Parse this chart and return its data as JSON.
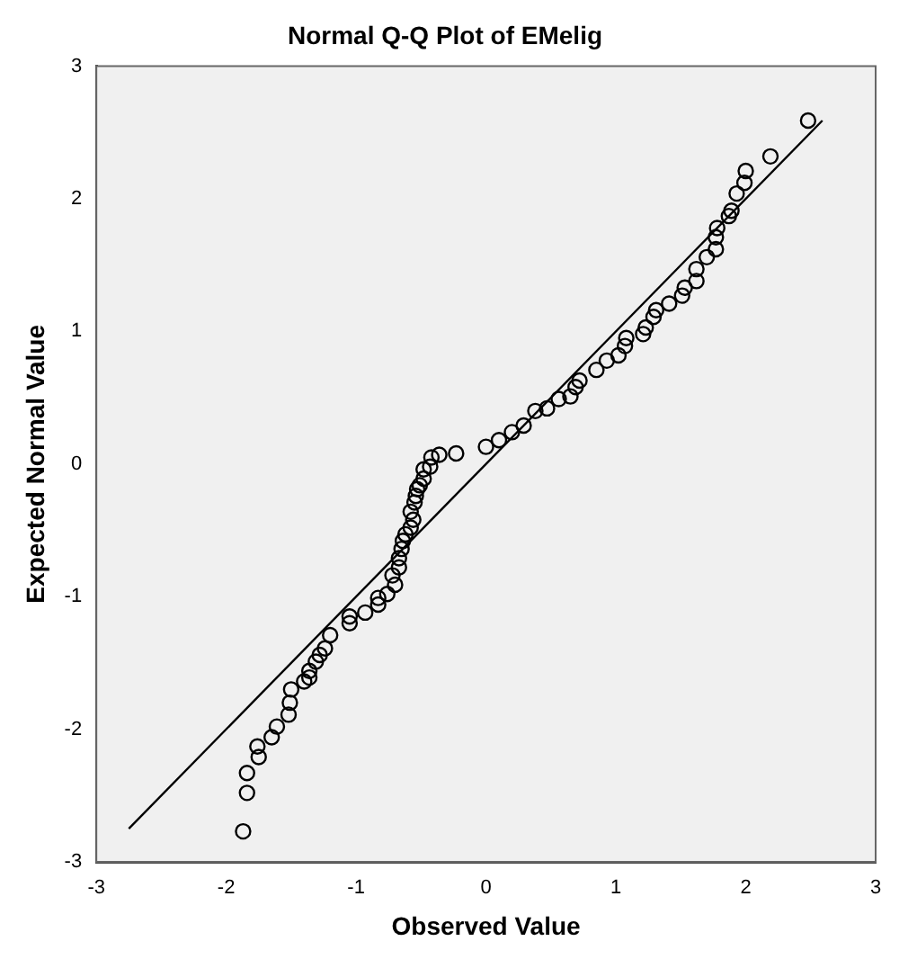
{
  "chart_data": {
    "type": "scatter",
    "title": "Normal Q-Q Plot of EMelig",
    "xlabel": "Observed Value",
    "ylabel": "Expected Normal Value",
    "xlim": [
      -3,
      3
    ],
    "xticks": [
      -3,
      -2,
      -1,
      0,
      1,
      2,
      3
    ],
    "ylim": [
      -3,
      3
    ],
    "yticks": [
      -3,
      -2,
      -1,
      0,
      1,
      2,
      3
    ],
    "marker": "circle",
    "series": [
      {
        "color": "#000000",
        "x": [
          -1.87,
          -1.84,
          -1.84,
          -1.75,
          -1.76,
          -1.65,
          -1.61,
          -1.52,
          -1.51,
          -1.5,
          -1.4,
          -1.36,
          -1.36,
          -1.31,
          -1.28,
          -1.24,
          -1.2,
          -1.05,
          -1.05,
          -0.93,
          -0.83,
          -0.83,
          -0.76,
          -0.7,
          -0.72,
          -0.67,
          -0.67,
          -0.65,
          -0.64,
          -0.62,
          -0.58,
          -0.56,
          -0.58,
          -0.55,
          -0.54,
          -0.53,
          -0.51,
          -0.48,
          -0.48,
          -0.42,
          -0.43,
          -0.36,
          -0.23,
          0.0,
          0.1,
          0.2,
          0.29,
          0.38,
          0.47,
          0.56,
          0.65,
          0.69,
          0.72,
          0.85,
          0.93,
          1.02,
          1.07,
          1.08,
          1.21,
          1.23,
          1.29,
          1.31,
          1.41,
          1.51,
          1.53,
          1.62,
          1.62,
          1.7,
          1.77,
          1.77,
          1.78,
          1.87,
          1.89,
          1.93,
          1.99,
          2.0,
          2.19,
          2.48
        ],
        "values": [
          -2.77,
          -2.48,
          -2.33,
          -2.21,
          -2.13,
          -2.06,
          -1.98,
          -1.89,
          -1.8,
          -1.7,
          -1.64,
          -1.61,
          -1.56,
          -1.49,
          -1.44,
          -1.39,
          -1.29,
          -1.2,
          -1.15,
          -1.12,
          -1.06,
          -1.01,
          -0.98,
          -0.91,
          -0.84,
          -0.78,
          -0.71,
          -0.64,
          -0.58,
          -0.53,
          -0.48,
          -0.42,
          -0.36,
          -0.29,
          -0.24,
          -0.19,
          -0.16,
          -0.11,
          -0.04,
          0.05,
          -0.02,
          0.07,
          0.08,
          0.13,
          0.18,
          0.24,
          0.29,
          0.4,
          0.42,
          0.49,
          0.51,
          0.58,
          0.63,
          0.71,
          0.78,
          0.82,
          0.89,
          0.95,
          0.98,
          1.03,
          1.11,
          1.16,
          1.21,
          1.27,
          1.33,
          1.38,
          1.47,
          1.56,
          1.62,
          1.71,
          1.78,
          1.87,
          1.91,
          2.04,
          2.12,
          2.21,
          2.32,
          2.59
        ]
      },
      {
        "type": "line",
        "color": "#000000",
        "marker": "none",
        "x": [
          -2.75,
          2.59
        ],
        "values": [
          -2.75,
          2.59
        ]
      }
    ]
  }
}
